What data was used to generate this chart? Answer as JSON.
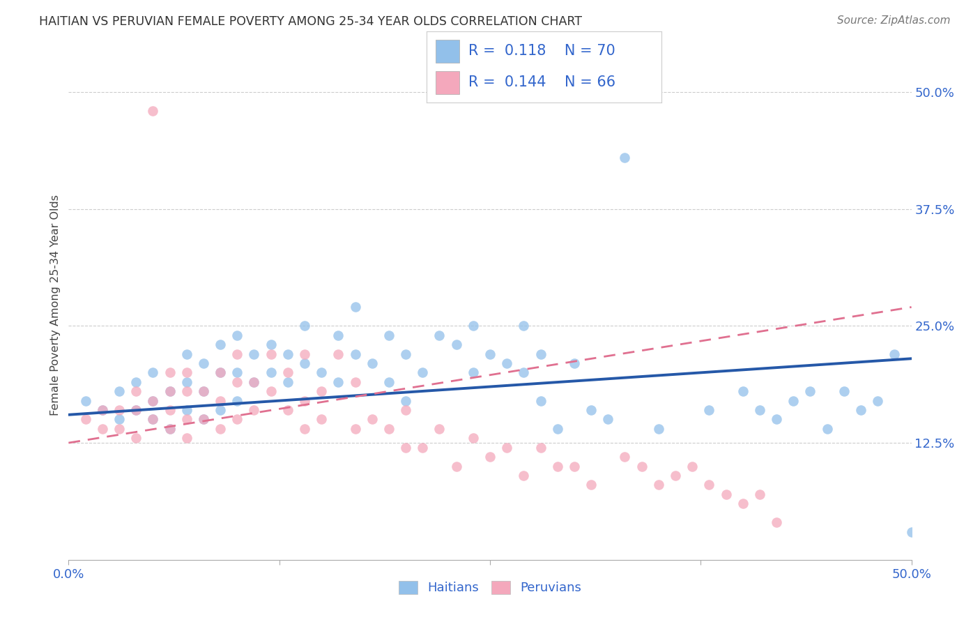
{
  "title": "HAITIAN VS PERUVIAN FEMALE POVERTY AMONG 25-34 YEAR OLDS CORRELATION CHART",
  "source": "Source: ZipAtlas.com",
  "ylabel": "Female Poverty Among 25-34 Year Olds",
  "xlim": [
    0.0,
    0.5
  ],
  "ylim": [
    0.0,
    0.545
  ],
  "xticks": [
    0.0,
    0.125,
    0.25,
    0.375,
    0.5
  ],
  "xticklabels": [
    "0.0%",
    "",
    "",
    "",
    "50.0%"
  ],
  "ytick_vals": [
    0.125,
    0.25,
    0.375,
    0.5
  ],
  "ytick_labels": [
    "12.5%",
    "25.0%",
    "37.5%",
    "50.0%"
  ],
  "legend_R_haitian": "0.118",
  "legend_N_haitian": "70",
  "legend_R_peruvian": "0.144",
  "legend_N_peruvian": "66",
  "haitian_color": "#92C0EA",
  "peruvian_color": "#F4A8BC",
  "haitian_line_color": "#2558A8",
  "peruvian_line_color": "#E07090",
  "axis_color": "#3366CC",
  "grid_color": "#CCCCCC",
  "haitians_x": [
    0.01,
    0.02,
    0.03,
    0.03,
    0.04,
    0.04,
    0.05,
    0.05,
    0.05,
    0.06,
    0.06,
    0.07,
    0.07,
    0.07,
    0.08,
    0.08,
    0.08,
    0.09,
    0.09,
    0.09,
    0.1,
    0.1,
    0.1,
    0.11,
    0.11,
    0.12,
    0.12,
    0.13,
    0.13,
    0.14,
    0.14,
    0.15,
    0.16,
    0.16,
    0.17,
    0.17,
    0.18,
    0.19,
    0.19,
    0.2,
    0.2,
    0.21,
    0.22,
    0.23,
    0.24,
    0.24,
    0.25,
    0.26,
    0.27,
    0.27,
    0.28,
    0.28,
    0.29,
    0.3,
    0.31,
    0.32,
    0.33,
    0.35,
    0.38,
    0.4,
    0.41,
    0.42,
    0.43,
    0.44,
    0.45,
    0.46,
    0.47,
    0.48,
    0.49,
    0.5
  ],
  "haitians_y": [
    0.17,
    0.16,
    0.15,
    0.18,
    0.16,
    0.19,
    0.15,
    0.17,
    0.2,
    0.14,
    0.18,
    0.16,
    0.19,
    0.22,
    0.15,
    0.18,
    0.21,
    0.16,
    0.2,
    0.23,
    0.17,
    0.2,
    0.24,
    0.19,
    0.22,
    0.2,
    0.23,
    0.19,
    0.22,
    0.21,
    0.25,
    0.2,
    0.24,
    0.19,
    0.22,
    0.27,
    0.21,
    0.19,
    0.24,
    0.17,
    0.22,
    0.2,
    0.24,
    0.23,
    0.2,
    0.25,
    0.22,
    0.21,
    0.2,
    0.25,
    0.17,
    0.22,
    0.14,
    0.21,
    0.16,
    0.15,
    0.43,
    0.14,
    0.16,
    0.18,
    0.16,
    0.15,
    0.17,
    0.18,
    0.14,
    0.18,
    0.16,
    0.17,
    0.22,
    0.03
  ],
  "peruvians_x": [
    0.01,
    0.02,
    0.02,
    0.03,
    0.03,
    0.04,
    0.04,
    0.04,
    0.05,
    0.05,
    0.05,
    0.06,
    0.06,
    0.06,
    0.06,
    0.07,
    0.07,
    0.07,
    0.07,
    0.08,
    0.08,
    0.09,
    0.09,
    0.09,
    0.1,
    0.1,
    0.1,
    0.11,
    0.11,
    0.12,
    0.12,
    0.13,
    0.13,
    0.14,
    0.14,
    0.14,
    0.15,
    0.15,
    0.16,
    0.17,
    0.17,
    0.18,
    0.19,
    0.2,
    0.2,
    0.21,
    0.22,
    0.23,
    0.24,
    0.25,
    0.26,
    0.27,
    0.28,
    0.29,
    0.3,
    0.31,
    0.33,
    0.34,
    0.35,
    0.36,
    0.37,
    0.38,
    0.39,
    0.4,
    0.41,
    0.42
  ],
  "peruvians_y": [
    0.15,
    0.14,
    0.16,
    0.14,
    0.16,
    0.13,
    0.16,
    0.18,
    0.15,
    0.17,
    0.48,
    0.14,
    0.16,
    0.18,
    0.2,
    0.13,
    0.15,
    0.18,
    0.2,
    0.15,
    0.18,
    0.14,
    0.17,
    0.2,
    0.15,
    0.19,
    0.22,
    0.16,
    0.19,
    0.18,
    0.22,
    0.16,
    0.2,
    0.14,
    0.17,
    0.22,
    0.15,
    0.18,
    0.22,
    0.14,
    0.19,
    0.15,
    0.14,
    0.16,
    0.12,
    0.12,
    0.14,
    0.1,
    0.13,
    0.11,
    0.12,
    0.09,
    0.12,
    0.1,
    0.1,
    0.08,
    0.11,
    0.1,
    0.08,
    0.09,
    0.1,
    0.08,
    0.07,
    0.06,
    0.07,
    0.04
  ],
  "haitian_line_x0": 0.0,
  "haitian_line_y0": 0.155,
  "haitian_line_x1": 0.5,
  "haitian_line_y1": 0.215,
  "peruvian_line_x0": 0.0,
  "peruvian_line_y0": 0.125,
  "peruvian_line_x1": 0.5,
  "peruvian_line_y1": 0.27
}
